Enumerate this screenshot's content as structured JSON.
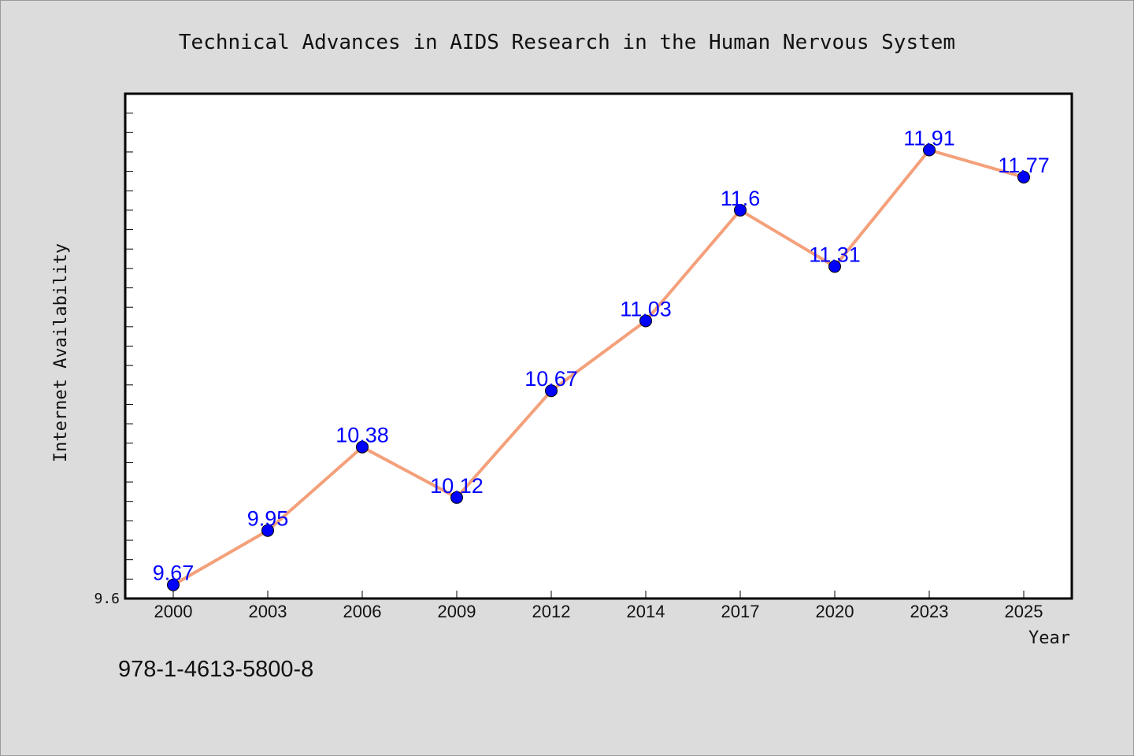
{
  "chart_data": {
    "type": "line",
    "title": "Technical Advances in AIDS Research in the Human Nervous System",
    "xlabel": "Year",
    "ylabel": "Internet Availability",
    "categories": [
      "2000",
      "2003",
      "2006",
      "2009",
      "2012",
      "2014",
      "2017",
      "2020",
      "2023",
      "2025"
    ],
    "series": [
      {
        "values": [
          9.67,
          9.95,
          10.38,
          10.12,
          10.67,
          11.03,
          11.6,
          11.31,
          11.91,
          11.77
        ]
      }
    ],
    "data_labels": [
      "9.67",
      "9.95",
      "10.38",
      "10.12",
      "10.67",
      "11.03",
      "11.6",
      "11.31",
      "11.91",
      "11.77"
    ],
    "y_tick_labels": [
      "9.6"
    ],
    "ylim": [
      9.6,
      12.2
    ],
    "grid": false,
    "legend": "none",
    "colors": {
      "line": "#f4a07a",
      "marker": "#0000ff",
      "data_label": "#0000ff"
    }
  },
  "footer": {
    "isbn": "978-1-4613-5800-8"
  }
}
